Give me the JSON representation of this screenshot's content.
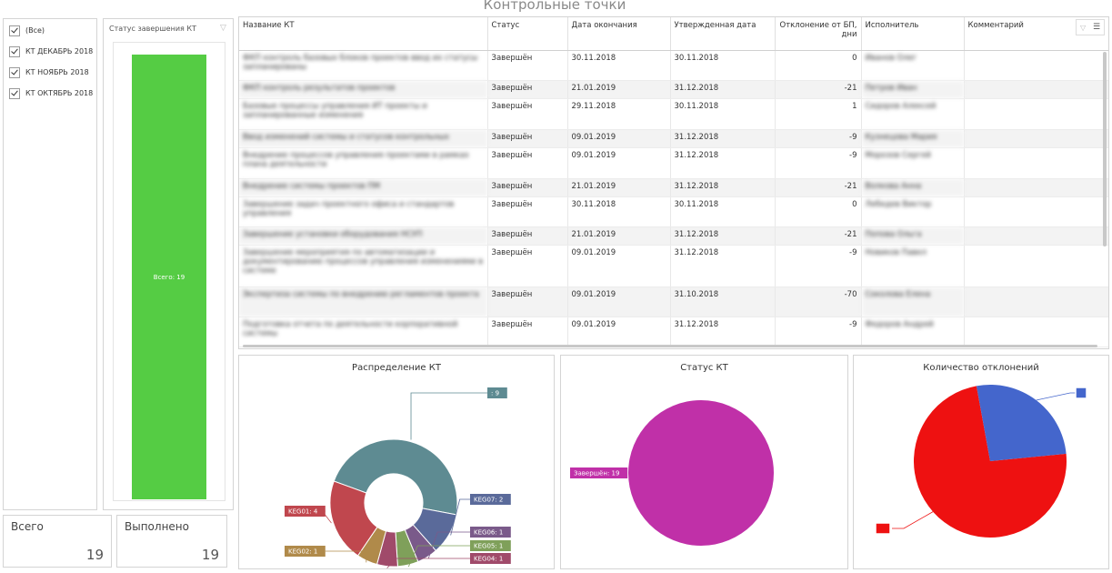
{
  "page_title": "Контрольные точки",
  "filter": {
    "items": [
      {
        "label": "(Все)",
        "checked": true
      },
      {
        "label": "КТ ДЕКАБРЬ 2018",
        "checked": true
      },
      {
        "label": "КТ НОЯБРЬ 2018",
        "checked": true
      },
      {
        "label": "КТ ОКТЯБРЬ 2018",
        "checked": true
      }
    ]
  },
  "status_chart": {
    "title": "Статус завершения КТ",
    "bar_label": "Всего: 19",
    "bar_color": "#55cc44"
  },
  "kpis": {
    "total_label": "Всего",
    "total_value": "19",
    "done_label": "Выполнено",
    "done_value": "19"
  },
  "table": {
    "columns": [
      "Название КТ",
      "Статус",
      "Дата окончания",
      "Утвержденная дата",
      "Отклонение от БП, дни",
      "Исполнитель",
      "Комментарий"
    ],
    "rows": [
      {
        "name": "ФКП контроль базовых блоков проектов ввод их статусы запланированы",
        "status": "Завершён",
        "end": "30.11.2018",
        "approved": "30.11.2018",
        "dev": "0",
        "exec": "Иванов Олег",
        "comment": ""
      },
      {
        "name": "ФКП контроль результатов проектов",
        "status": "Завершён",
        "end": "21.01.2019",
        "approved": "31.12.2018",
        "dev": "-21",
        "exec": "Петров Иван",
        "comment": ""
      },
      {
        "name": "Базовые процессы управления ИТ проекты и запланированные изменения",
        "status": "Завершён",
        "end": "29.11.2018",
        "approved": "30.11.2018",
        "dev": "1",
        "exec": "Сидоров Алексей",
        "comment": ""
      },
      {
        "name": "Ввод изменений системы и статусов контрольных",
        "status": "Завершён",
        "end": "09.01.2019",
        "approved": "31.12.2018",
        "dev": "-9",
        "exec": "Кузнецова Мария",
        "comment": ""
      },
      {
        "name": "Внедрение процессов управления проектами в рамках плана деятельности",
        "status": "Завершён",
        "end": "09.01.2019",
        "approved": "31.12.2018",
        "dev": "-9",
        "exec": "Морозов Сергей",
        "comment": ""
      },
      {
        "name": "Внедрение системы проектов ПМ",
        "status": "Завершён",
        "end": "21.01.2019",
        "approved": "31.12.2018",
        "dev": "-21",
        "exec": "Волкова Анна",
        "comment": ""
      },
      {
        "name": "Завершение задач проектного офиса и стандартов управления",
        "status": "Завершён",
        "end": "30.11.2018",
        "approved": "30.11.2018",
        "dev": "0",
        "exec": "Лебедев Виктор",
        "comment": ""
      },
      {
        "name": "Завершение установки оборудования НСУП",
        "status": "Завершён",
        "end": "21.01.2019",
        "approved": "31.12.2018",
        "dev": "-21",
        "exec": "Попова Ольга",
        "comment": ""
      },
      {
        "name": "Завершение мероприятия по автоматизации и документированию процессов управления изменениями в системе",
        "status": "Завершён",
        "end": "09.01.2019",
        "approved": "31.12.2018",
        "dev": "-9",
        "exec": "Новиков Павел",
        "comment": ""
      },
      {
        "name": "Экспертиза системы по внедрению регламентов проекта",
        "status": "Завершён",
        "end": "09.01.2019",
        "approved": "31.10.2018",
        "dev": "-70",
        "exec": "Соколова Елена",
        "comment": ""
      },
      {
        "name": "Подготовка отчета по деятельности корпоративной системы",
        "status": "Завершён",
        "end": "09.01.2019",
        "approved": "31.12.2018",
        "dev": "-9",
        "exec": "Федоров Андрей",
        "comment": ""
      }
    ]
  },
  "donut_chart": {
    "title": "Распределение КТ",
    "colors": {
      "main": "#5e8b92",
      "keg07": "#5a6a9a",
      "keg06": "#7a5a8a",
      "keg05": "#7fa05a",
      "keg04": "#a04a6a",
      "keg02": "#b08a4a",
      "keg01": "#c0474e"
    }
  },
  "status_pie": {
    "title": "Статус КТ",
    "color": "#c030a8"
  },
  "deviation_pie": {
    "title": "Количество отклонений",
    "colors": {
      "red": "#ee1111",
      "blue": "#4466cc"
    }
  },
  "chart_data": [
    {
      "type": "pie",
      "title": "Распределение КТ",
      "categories": [
        "",
        "KEG07",
        "KEG06",
        "KEG05",
        "KEG04",
        "KEG02",
        "KEG01"
      ],
      "values": [
        9,
        2,
        1,
        1,
        1,
        1,
        4
      ],
      "labels": [
        ": 9",
        "KEG07: 2",
        "KEG06: 1",
        "KEG05: 1",
        "KEG04: 1",
        "KEG02: 1",
        "KEG01: 4"
      ],
      "hole": true
    },
    {
      "type": "pie",
      "title": "Статус КТ",
      "categories": [
        "Завершён"
      ],
      "values": [
        19
      ],
      "labels": [
        "Завершён: 19"
      ]
    },
    {
      "type": "pie",
      "title": "Количество отклонений",
      "categories": [
        "",
        ""
      ],
      "values": [
        14,
        5
      ]
    },
    {
      "type": "bar",
      "title": "Статус завершения КТ",
      "categories": [
        "Всего"
      ],
      "values": [
        19
      ],
      "labels": [
        "Всего: 19"
      ]
    }
  ]
}
